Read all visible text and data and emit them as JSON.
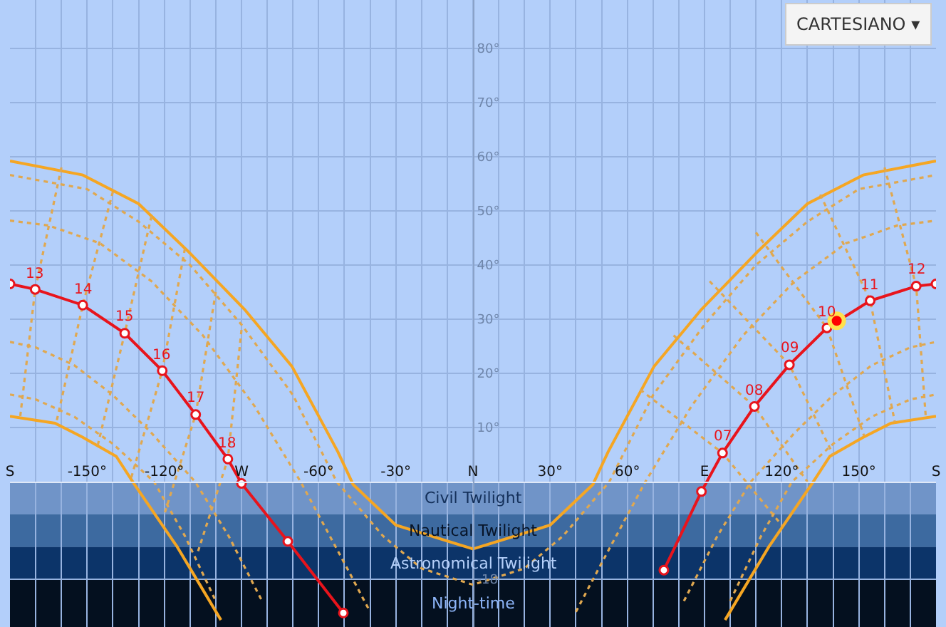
{
  "chart_data": {
    "type": "line",
    "xlim": [
      -180,
      180
    ],
    "ylim": [
      -26.8,
      88.9
    ],
    "xticks": [
      {
        "value": -180,
        "label": "S"
      },
      {
        "value": -170,
        "label": null
      },
      {
        "value": -160,
        "label": null
      },
      {
        "value": -150,
        "label": "-150°"
      },
      {
        "value": -140,
        "label": null
      },
      {
        "value": -130,
        "label": null
      },
      {
        "value": -120,
        "label": "-120°"
      },
      {
        "value": -110,
        "label": null
      },
      {
        "value": -100,
        "label": null
      },
      {
        "value": -90,
        "label": "W"
      },
      {
        "value": -80,
        "label": null
      },
      {
        "value": -70,
        "label": null
      },
      {
        "value": -60,
        "label": "-60°"
      },
      {
        "value": -50,
        "label": null
      },
      {
        "value": -40,
        "label": null
      },
      {
        "value": -30,
        "label": "-30°"
      },
      {
        "value": -20,
        "label": null
      },
      {
        "value": -10,
        "label": null
      },
      {
        "value": 0,
        "label": "N"
      },
      {
        "value": 10,
        "label": null
      },
      {
        "value": 20,
        "label": null
      },
      {
        "value": 30,
        "label": "30°"
      },
      {
        "value": 40,
        "label": null
      },
      {
        "value": 50,
        "label": null
      },
      {
        "value": 60,
        "label": "60°"
      },
      {
        "value": 70,
        "label": null
      },
      {
        "value": 80,
        "label": null
      },
      {
        "value": 90,
        "label": "E"
      },
      {
        "value": 100,
        "label": null
      },
      {
        "value": 110,
        "label": null
      },
      {
        "value": 120,
        "label": "120°"
      },
      {
        "value": 130,
        "label": null
      },
      {
        "value": 140,
        "label": null
      },
      {
        "value": 150,
        "label": "150°"
      },
      {
        "value": 160,
        "label": null
      },
      {
        "value": 170,
        "label": null
      },
      {
        "value": 180,
        "label": "S"
      }
    ],
    "yticks": [
      {
        "value": -18,
        "label": "-18"
      },
      {
        "value": 10,
        "label": "10°"
      },
      {
        "value": 20,
        "label": "20°"
      },
      {
        "value": 30,
        "label": "30°"
      },
      {
        "value": 40,
        "label": "40°"
      },
      {
        "value": 50,
        "label": "50°"
      },
      {
        "value": 60,
        "label": "60°"
      },
      {
        "value": 70,
        "label": "70°"
      },
      {
        "value": 80,
        "label": "80°"
      }
    ],
    "grid": true,
    "bands": [
      {
        "axis": "y",
        "from": -6,
        "to": 0,
        "label": "Civil Twilight",
        "color": "#7094c8"
      },
      {
        "axis": "y",
        "from": -12,
        "to": -6,
        "label": "Nautical Twilight",
        "color": "#3d6aa0"
      },
      {
        "axis": "y",
        "from": -18,
        "to": -12,
        "label": "Astronomical Twilight",
        "color": "#0c3469"
      },
      {
        "axis": "y",
        "from": -26.8,
        "to": -18,
        "label": "Night-time",
        "color": "#04101f"
      }
    ],
    "series": [
      {
        "color": "#f5a623",
        "line_style": "solid",
        "marker": "none",
        "x": [
          -180,
          -151.7,
          -130,
          -110.5,
          -88.8,
          -70.4,
          -52.5,
          -46.6,
          -30,
          0,
          30,
          46.6,
          52.5,
          70.4,
          88.8,
          110.5,
          130,
          151.7,
          180
        ],
        "values": [
          59.2,
          56.6,
          51.3,
          42.4,
          31.8,
          21.3,
          5.5,
          -0.5,
          -8,
          -12.4,
          -8,
          -0.5,
          5.5,
          21.3,
          31.8,
          42.4,
          51.3,
          56.6,
          59.2
        ]
      },
      {
        "color": "#f5a623",
        "line_style": "solid",
        "marker": "none",
        "x": [
          -180,
          -162.5,
          -151.7,
          -138.7,
          -131.6,
          -115,
          -98,
          null,
          98,
          115,
          131.6,
          138.7,
          151.7,
          162.5,
          180
        ],
        "values": [
          12.1,
          10.8,
          8.2,
          4.7,
          -0.5,
          -12,
          -25.5,
          null,
          -25.5,
          -12,
          -0.5,
          4.7,
          8.2,
          10.8,
          12.1
        ]
      },
      {
        "color": "#e0a850",
        "line_style": "dotted",
        "marker": "none",
        "x": [
          -180,
          -150,
          -130,
          -110,
          -90,
          -70,
          -53,
          -35,
          -20,
          0,
          20,
          35,
          53,
          70,
          90,
          110,
          130,
          150,
          180
        ],
        "values": [
          56.6,
          54,
          48,
          40,
          29,
          16,
          0,
          -10,
          -16,
          -19,
          -16,
          -10,
          0,
          16,
          29,
          40,
          48,
          54,
          56.6
        ]
      },
      {
        "color": "#e0a850",
        "line_style": "dotted",
        "marker": "none",
        "x": [
          -180,
          -165,
          -145,
          -125,
          -105,
          -85,
          -67,
          -50,
          -40,
          null,
          40,
          50,
          67,
          85,
          105,
          125,
          145,
          165,
          180
        ],
        "values": [
          48.2,
          47.3,
          44,
          37,
          27,
          14,
          0,
          -15,
          -24,
          null,
          -24,
          -15,
          0,
          14,
          27,
          37,
          44,
          47.3,
          48.2
        ]
      },
      {
        "color": "#e0a850",
        "line_style": "dotted",
        "marker": "none",
        "x": [
          -180,
          -170,
          -155,
          -140,
          -125,
          -108,
          -95,
          -82,
          null,
          82,
          95,
          108,
          125,
          140,
          155,
          170,
          180
        ],
        "values": [
          25.8,
          24.8,
          21.5,
          16,
          9,
          0,
          -10,
          -22,
          null,
          -22,
          -10,
          0,
          9,
          16,
          21.5,
          24.8,
          25.8
        ]
      },
      {
        "color": "#e0a850",
        "line_style": "dotted",
        "marker": "none",
        "x": [
          -180,
          -170,
          -155,
          -140,
          -124,
          -112,
          -100,
          null,
          100,
          112,
          124,
          140,
          155,
          170,
          180
        ],
        "values": [
          16.1,
          15.2,
          12,
          7,
          0,
          -10,
          -22,
          null,
          -22,
          -10,
          0,
          7,
          12,
          15.2,
          16.1
        ]
      },
      {
        "color": "#e0a850",
        "line_style": "dotted",
        "marker": "none",
        "x": [
          -160,
          -170.2,
          -176
        ],
        "values": [
          58,
          35.5,
          12.1
        ]
      },
      {
        "color": "#e0a850",
        "line_style": "dotted",
        "marker": "none",
        "x": [
          -140,
          -151.7,
          -162
        ],
        "values": [
          53.5,
          32.6,
          10.9
        ]
      },
      {
        "color": "#e0a850",
        "line_style": "dotted",
        "marker": "none",
        "x": [
          -125,
          -135.4,
          -146
        ],
        "values": [
          49,
          27.4,
          6.5
        ]
      },
      {
        "color": "#e0a850",
        "line_style": "dotted",
        "marker": "none",
        "x": [
          -112,
          -120.8,
          -133
        ],
        "values": [
          43,
          20.5,
          0.5
        ]
      },
      {
        "color": "#e0a850",
        "line_style": "dotted",
        "marker": "none",
        "x": [
          -100,
          -107.8,
          -120
        ],
        "values": [
          35,
          12.4,
          -6
        ]
      },
      {
        "color": "#e0a850",
        "line_style": "dotted",
        "marker": "none",
        "x": [
          -90,
          -95.3,
          -107
        ],
        "values": [
          28,
          4.2,
          -13
        ]
      },
      {
        "color": "#e0a850",
        "line_style": "dotted",
        "marker": "none",
        "x": [
          65,
          97,
          120
        ],
        "values": [
          17,
          5.3,
          -8
        ]
      },
      {
        "color": "#e0a850",
        "line_style": "dotted",
        "marker": "none",
        "x": [
          78,
          109.4,
          130
        ],
        "values": [
          27,
          13.9,
          0
        ]
      },
      {
        "color": "#e0a850",
        "line_style": "dotted",
        "marker": "none",
        "x": [
          92,
          123,
          140
        ],
        "values": [
          37,
          21.6,
          5
        ]
      },
      {
        "color": "#e0a850",
        "line_style": "dotted",
        "marker": "none",
        "x": [
          110,
          137.6,
          152
        ],
        "values": [
          46,
          28.4,
          8.5
        ]
      },
      {
        "color": "#e0a850",
        "line_style": "dotted",
        "marker": "none",
        "x": [
          135,
          154.4,
          164
        ],
        "values": [
          53,
          33.4,
          11
        ]
      },
      {
        "color": "#e0a850",
        "line_style": "dotted",
        "marker": "none",
        "x": [
          160,
          172.3,
          176
        ],
        "values": [
          58,
          36.1,
          12
        ]
      },
      {
        "color": "#e8141c",
        "line_style": "solid",
        "marker": "circle",
        "x": [
          -180,
          -170.2,
          -151.7,
          -135.4,
          -120.8,
          -107.8,
          -95.3,
          -90,
          -72,
          -50.4
        ],
        "values": [
          36.5,
          35.5,
          32.6,
          27.4,
          20.5,
          12.4,
          4.2,
          -0.3,
          -11,
          -24.2
        ]
      },
      {
        "color": "#e8141c",
        "line_style": "solid",
        "marker": "circle",
        "x": [
          74.2,
          88.8,
          97,
          109.4,
          123,
          137.6,
          154.4,
          172.3,
          180
        ],
        "values": [
          -16.3,
          -1.8,
          5.3,
          13.9,
          21.6,
          28.4,
          33.4,
          36.1,
          36.5
        ]
      },
      {
        "color": "#ff0000",
        "type": "scatter",
        "marker": "circle",
        "x": [
          141.4
        ],
        "values": [
          29.7
        ]
      }
    ],
    "annotations": [
      {
        "text": "13",
        "x": -170.2,
        "y": 35.5
      },
      {
        "text": "14",
        "x": -151.7,
        "y": 32.6
      },
      {
        "text": "15",
        "x": -135.4,
        "y": 27.4
      },
      {
        "text": "16",
        "x": -120.8,
        "y": 20.5
      },
      {
        "text": "17",
        "x": -107.8,
        "y": 12.4
      },
      {
        "text": "18",
        "x": -95.3,
        "y": 4.2
      },
      {
        "text": "07",
        "x": 97,
        "y": 5.3
      },
      {
        "text": "08",
        "x": 109.4,
        "y": 13.9
      },
      {
        "text": "09",
        "x": 123,
        "y": 21.6
      },
      {
        "text": "10",
        "x": 137.6,
        "y": 28.4
      },
      {
        "text": "11",
        "x": 154.4,
        "y": 33.4
      },
      {
        "text": "12",
        "x": 172.3,
        "y": 36.1
      },
      "CARTESIANO ▾"
    ]
  }
}
